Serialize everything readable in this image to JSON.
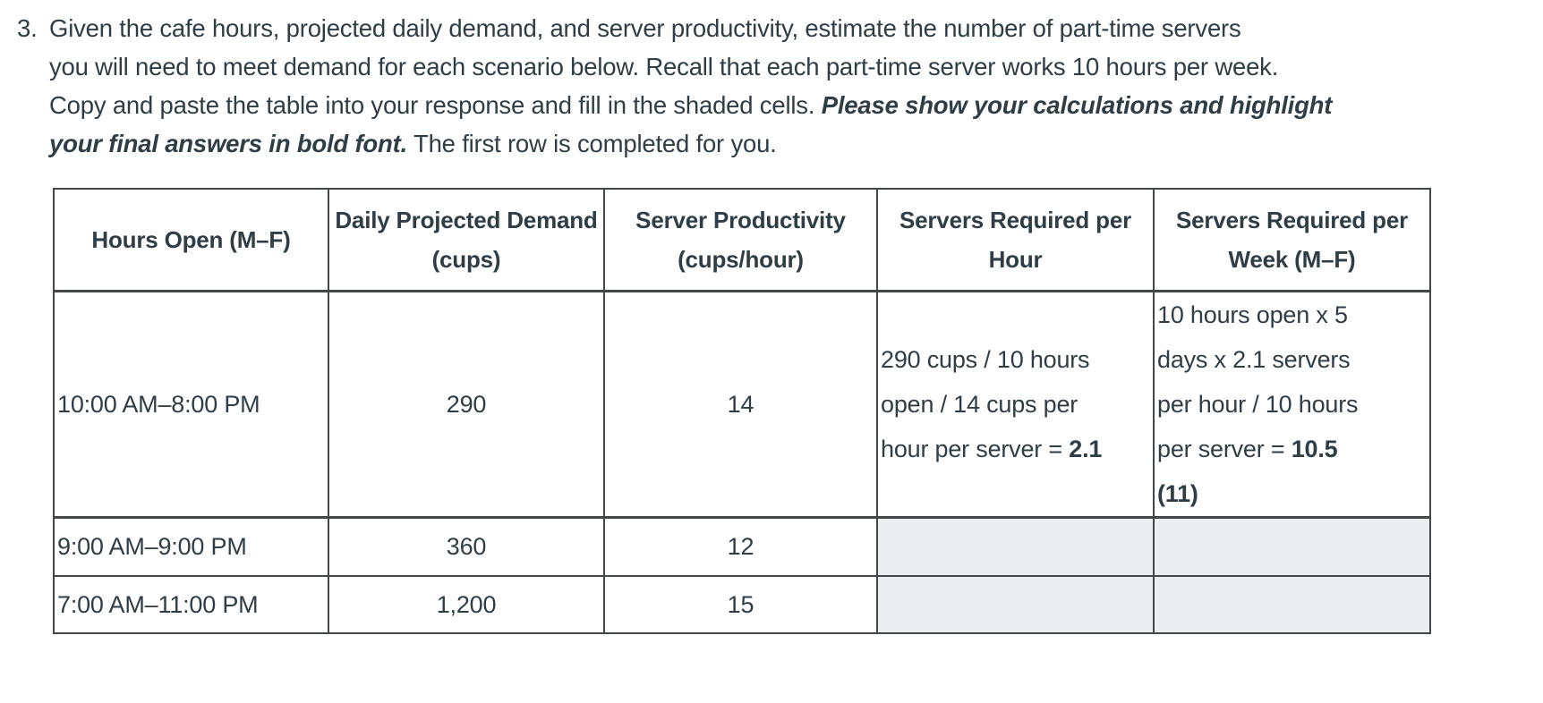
{
  "intro": {
    "number": "3.",
    "lines": [
      [
        {
          "text": "Given the cafe hours, projected daily demand, and server productivity, estimate the number of part-time servers"
        }
      ],
      [
        {
          "text": "you will need to meet demand for each scenario below. Recall that each part-time server works 10 hours per week."
        }
      ],
      [
        {
          "text": "Copy and paste the table into your response and fill in the shaded cells. "
        },
        {
          "text": "Please show your calculations and highlight",
          "bold": true,
          "italic": true
        }
      ],
      [
        {
          "text": "your final answers in bold font.",
          "bold": true,
          "italic": true
        },
        {
          "text": " The first row is completed for you."
        }
      ]
    ]
  },
  "table": {
    "headers": [
      "Hours Open (M–F)",
      "Daily Projected Demand (cups)",
      "Server Productivity (cups/hour)",
      "Servers Required per Hour",
      "Servers Required per Week (M–F)"
    ],
    "rows": [
      {
        "hours": "10:00 AM–8:00 PM",
        "demand": "290",
        "productivity": "14",
        "servers_per_hour": [
          [
            {
              "text": "290 cups / 10 hours"
            }
          ],
          [
            {
              "text": "open / 14 cups per"
            }
          ],
          [
            {
              "text": "hour per server = "
            },
            {
              "text": "2.1",
              "bold": true
            }
          ]
        ],
        "servers_per_week": [
          [
            {
              "text": "10 hours open x 5"
            }
          ],
          [
            {
              "text": "days x 2.1 servers"
            }
          ],
          [
            {
              "text": "per hour / 10 hours"
            }
          ],
          [
            {
              "text": "per server = "
            },
            {
              "text": "10.5",
              "bold": true
            }
          ],
          [
            {
              "text": "(11)",
              "bold": true
            }
          ]
        ],
        "shaded": false
      },
      {
        "hours": "9:00 AM–9:00 PM",
        "demand": "360",
        "productivity": "12",
        "servers_per_hour": [],
        "servers_per_week": [],
        "shaded": true
      },
      {
        "hours": "7:00 AM–11:00 PM",
        "demand": "1,200",
        "productivity": "15",
        "servers_per_hour": [],
        "servers_per_week": [],
        "shaded": true
      }
    ]
  },
  "colors": {
    "text": "#2f3d47",
    "table_border": "#43474a",
    "shaded_cell": "#eaeef0",
    "background": "#ffffff"
  }
}
